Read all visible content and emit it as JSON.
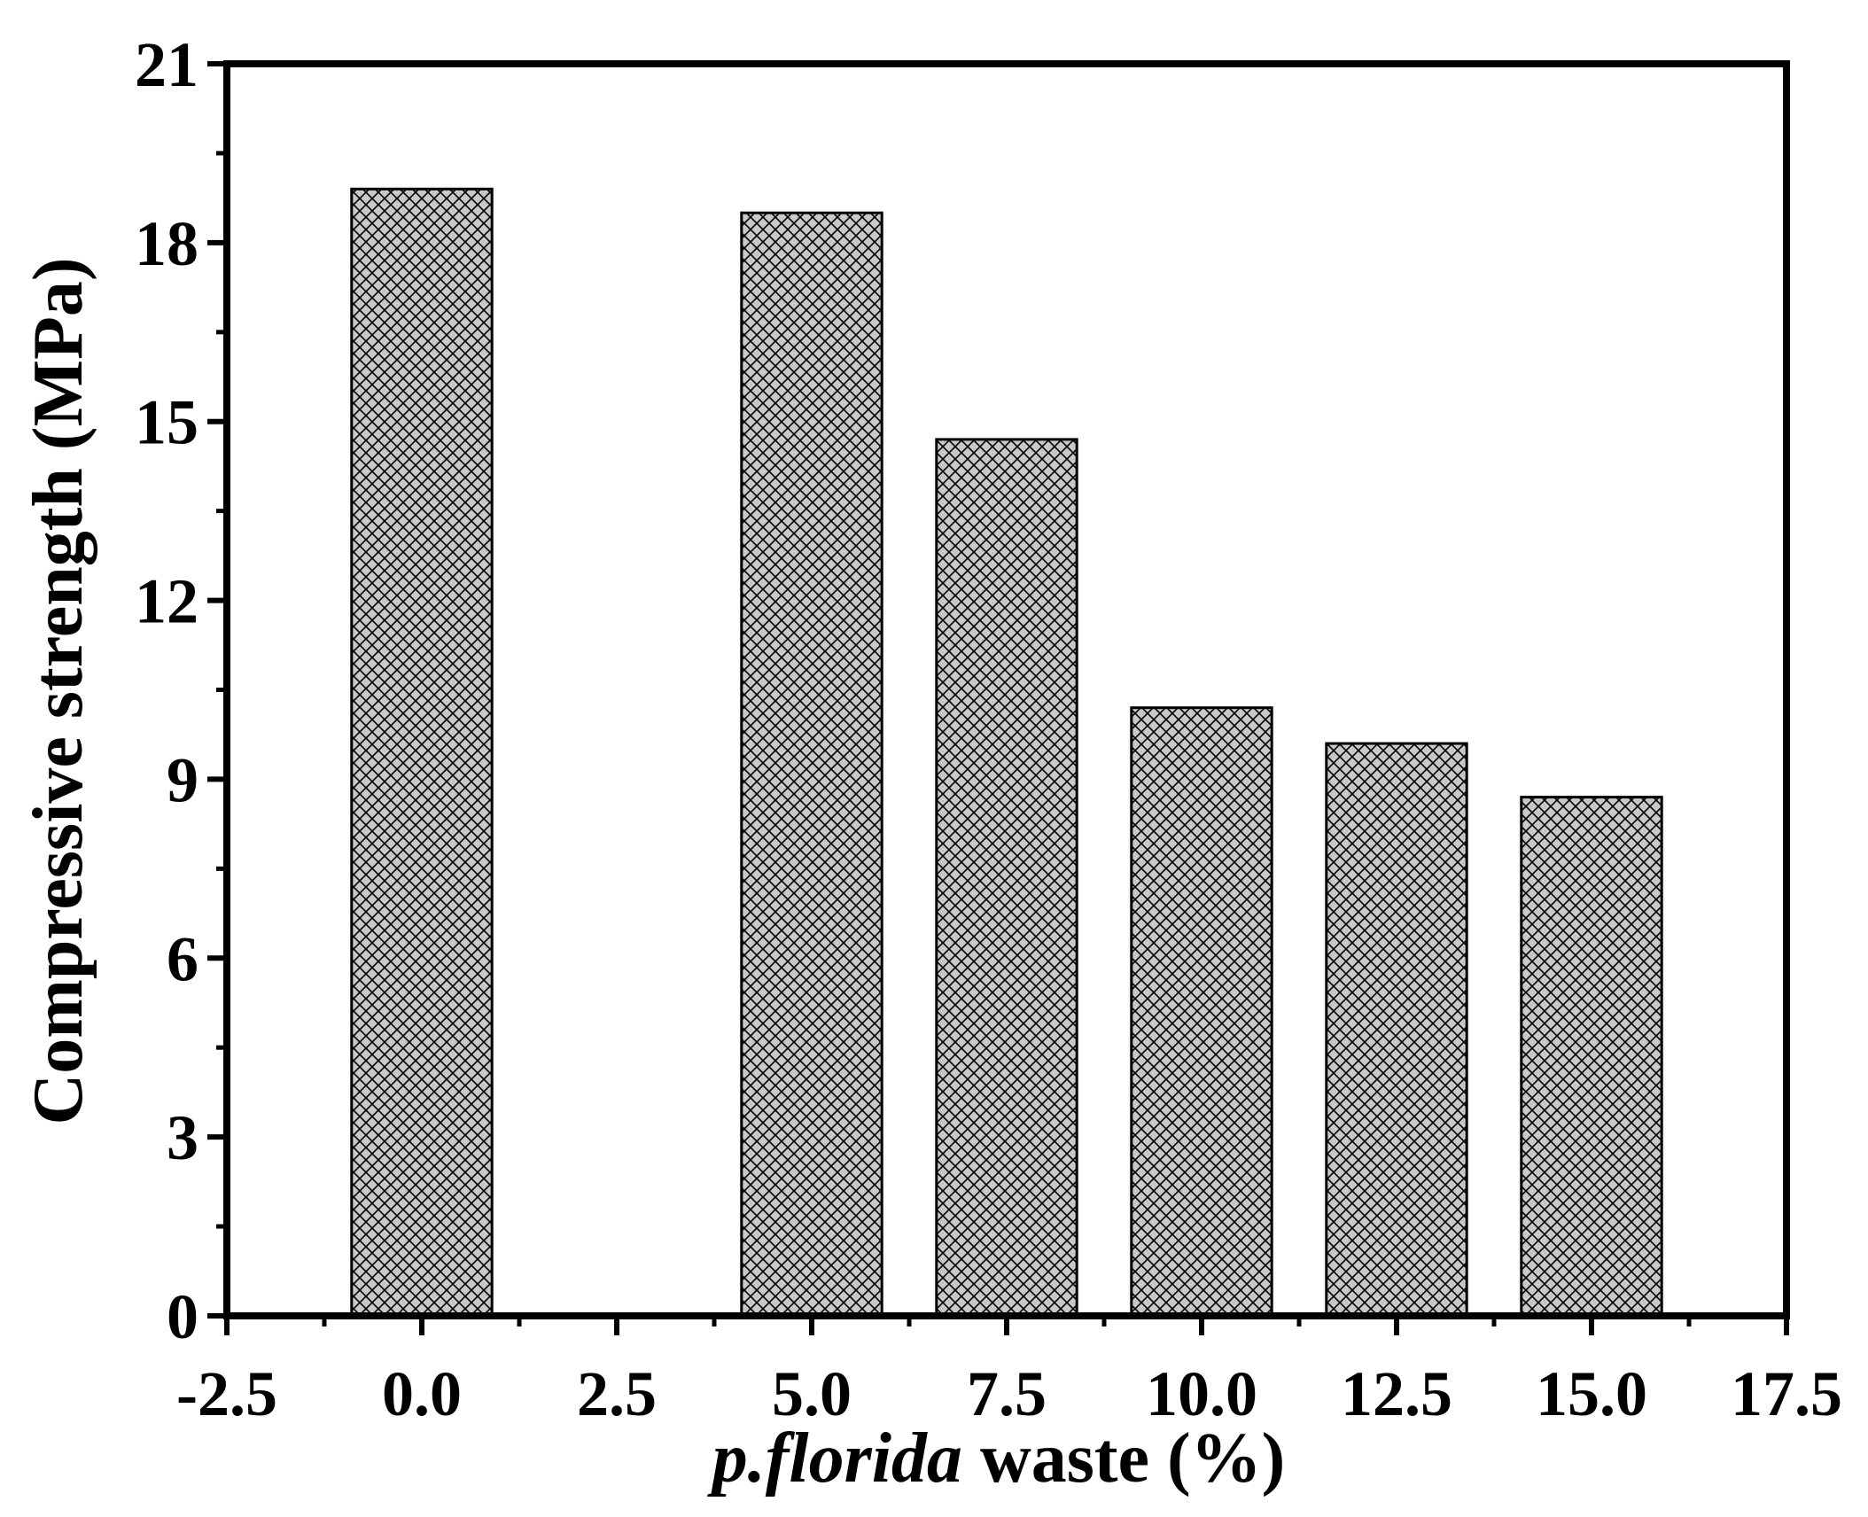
{
  "chart_data": {
    "type": "bar",
    "x": [
      0.0,
      5.0,
      7.5,
      10.0,
      12.5,
      15.0
    ],
    "values": [
      18.9,
      18.5,
      14.7,
      10.2,
      9.6,
      8.7
    ],
    "bar_width": 1.8,
    "xlim": [
      -2.5,
      17.5
    ],
    "ylim": [
      0,
      21
    ],
    "x_ticks": [
      -2.5,
      0.0,
      2.5,
      5.0,
      7.5,
      10.0,
      12.5,
      15.0,
      17.5
    ],
    "x_tick_labels": [
      "-2.5",
      "0.0",
      "2.5",
      "5.0",
      "7.5",
      "10.0",
      "12.5",
      "15.0",
      "17.5"
    ],
    "y_ticks": [
      0,
      3,
      6,
      9,
      12,
      15,
      18,
      21
    ],
    "y_tick_labels": [
      "0",
      "3",
      "6",
      "9",
      "12",
      "15",
      "18",
      "21"
    ],
    "xlabel_italic": "p.florida",
    "xlabel_rest": " waste (%)",
    "ylabel": "Compressive strength (MPa)",
    "grid": false,
    "bar_fill": "#c8c8c8",
    "bar_pattern": "crosshatch",
    "bar_edge": "#000000"
  }
}
